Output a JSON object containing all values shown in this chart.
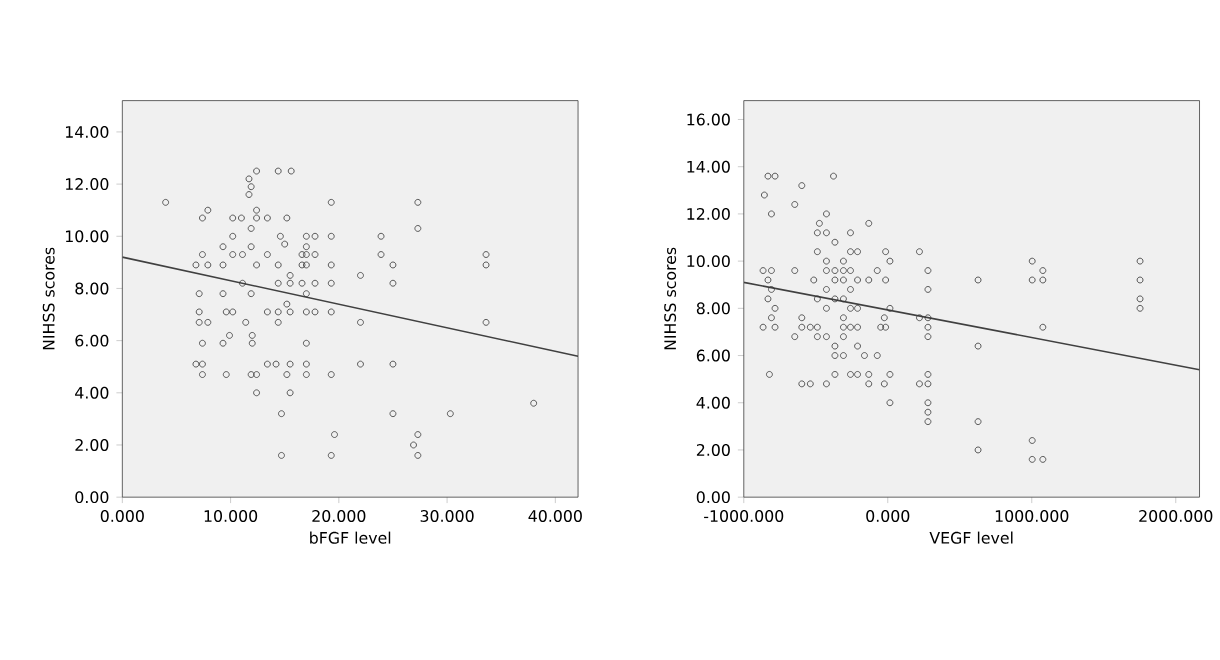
{
  "chart_data": [
    {
      "type": "scatter",
      "xlabel": "bFGF level",
      "ylabel": "NIHSS scores",
      "xlim": [
        0,
        42.1
      ],
      "ylim": [
        0,
        15.2
      ],
      "xticks": [
        {
          "value": 0,
          "label": "0.000"
        },
        {
          "value": 10,
          "label": "10.000"
        },
        {
          "value": 20,
          "label": "20.000"
        },
        {
          "value": 30,
          "label": "30.000"
        },
        {
          "value": 40,
          "label": "40.000"
        }
      ],
      "yticks": [
        {
          "value": 0,
          "label": "0.00"
        },
        {
          "value": 2,
          "label": "2.00"
        },
        {
          "value": 4,
          "label": "4.00"
        },
        {
          "value": 6,
          "label": "6.00"
        },
        {
          "value": 8,
          "label": "8.00"
        },
        {
          "value": 10,
          "label": "10.00"
        },
        {
          "value": 12,
          "label": "12.00"
        },
        {
          "value": 14,
          "label": "14.00"
        }
      ],
      "grid": false,
      "series": [
        {
          "color": "#333333",
          "marker": "circle",
          "x": [
            4.0,
            7.9,
            7.4,
            6.8,
            7.4,
            7.9,
            7.1,
            7.1,
            7.1,
            7.9,
            7.4,
            6.8,
            7.4,
            7.4,
            9.3,
            9.3,
            9.3,
            9.6,
            9.3,
            9.6,
            9.9,
            10.2,
            10.2,
            10.2,
            10.2,
            11.0,
            11.1,
            11.1,
            11.4,
            11.7,
            11.7,
            11.9,
            11.9,
            11.9,
            11.9,
            12.0,
            11.9,
            12.0,
            12.4,
            12.4,
            12.4,
            12.4,
            12.4,
            12.4,
            13.4,
            13.4,
            13.4,
            13.4,
            14.4,
            14.6,
            14.4,
            14.4,
            14.4,
            14.4,
            14.2,
            14.7,
            14.7,
            15.0,
            15.2,
            15.2,
            15.2,
            15.6,
            15.5,
            15.5,
            15.5,
            15.5,
            15.5,
            16.6,
            16.6,
            16.6,
            17.0,
            17.0,
            17.0,
            17.0,
            17.0,
            17.0,
            17.0,
            17.0,
            17.0,
            17.8,
            17.8,
            17.8,
            17.8,
            19.3,
            19.3,
            19.3,
            19.3,
            19.3,
            19.3,
            19.3,
            19.6,
            22.0,
            22.0,
            22.0,
            23.9,
            23.9,
            25.0,
            25.0,
            25.0,
            25.0,
            26.9,
            27.3,
            27.3,
            27.3,
            27.3,
            30.3,
            33.6,
            33.6,
            33.6,
            38.0
          ],
          "values": [
            11.3,
            11.0,
            10.7,
            8.9,
            9.3,
            8.9,
            7.8,
            7.1,
            6.7,
            6.7,
            5.9,
            5.1,
            5.1,
            4.7,
            9.6,
            8.9,
            7.8,
            7.1,
            5.9,
            4.7,
            6.2,
            10.7,
            10.0,
            9.3,
            7.1,
            10.7,
            9.3,
            8.2,
            6.7,
            12.2,
            11.6,
            11.9,
            10.3,
            9.6,
            7.8,
            6.2,
            4.7,
            5.9,
            12.5,
            11.0,
            10.7,
            8.9,
            4.0,
            4.7,
            10.7,
            9.3,
            7.1,
            5.1,
            12.5,
            10.0,
            8.9,
            8.2,
            7.1,
            6.7,
            5.1,
            3.2,
            1.6,
            9.7,
            7.4,
            4.7,
            10.7,
            12.5,
            8.5,
            8.2,
            7.1,
            5.1,
            4.0,
            9.3,
            8.9,
            8.2,
            10.0,
            9.6,
            9.3,
            8.9,
            7.8,
            7.1,
            5.9,
            5.1,
            4.7,
            10.0,
            9.3,
            8.2,
            7.1,
            11.3,
            10.0,
            8.9,
            8.2,
            7.1,
            4.7,
            1.6,
            2.4,
            8.5,
            6.7,
            5.1,
            10.0,
            9.3,
            8.9,
            8.2,
            5.1,
            3.2,
            2.0,
            11.3,
            10.3,
            2.4,
            1.6,
            3.2,
            9.3,
            8.9,
            6.7,
            3.6
          ]
        },
        {
          "type": "line",
          "color": "#404040",
          "marker": "none",
          "x": [
            0,
            42.1
          ],
          "values": [
            9.2,
            5.4
          ]
        }
      ]
    },
    {
      "type": "scatter",
      "xlabel": "VEGF level",
      "ylabel": "NIHSS scores",
      "xlim": [
        -1000,
        2165
      ],
      "ylim": [
        0,
        16.8
      ],
      "xticks": [
        {
          "value": -1000,
          "label": "-1000.000"
        },
        {
          "value": 0,
          "label": "0.000"
        },
        {
          "value": 1000,
          "label": "1000.000"
        },
        {
          "value": 2000,
          "label": "2000.000"
        }
      ],
      "yticks": [
        {
          "value": 0,
          "label": "0.00"
        },
        {
          "value": 2,
          "label": "2.00"
        },
        {
          "value": 4,
          "label": "4.00"
        },
        {
          "value": 6,
          "label": "6.00"
        },
        {
          "value": 8,
          "label": "8.00"
        },
        {
          "value": 10,
          "label": "10.00"
        },
        {
          "value": 12,
          "label": "12.00"
        },
        {
          "value": 14,
          "label": "14.00"
        },
        {
          "value": 16,
          "label": "16.00"
        }
      ],
      "grid": false,
      "series": [
        {
          "color": "#333333",
          "marker": "circle",
          "x": [
            -857,
            -832,
            -783,
            -808,
            -866,
            -808,
            -832,
            -832,
            -808,
            -783,
            -808,
            -866,
            -783,
            -822,
            -646,
            -597,
            -646,
            -646,
            -597,
            -597,
            -597,
            -538,
            -538,
            -514,
            -489,
            -489,
            -475,
            -489,
            -489,
            -489,
            -426,
            -426,
            -426,
            -426,
            -426,
            -426,
            -426,
            -426,
            -377,
            -367,
            -367,
            -367,
            -367,
            -367,
            -367,
            -367,
            -308,
            -308,
            -308,
            -308,
            -308,
            -308,
            -308,
            -308,
            -259,
            -259,
            -259,
            -259,
            -259,
            -259,
            -259,
            -210,
            -210,
            -210,
            -210,
            -210,
            -210,
            -162,
            -132,
            -132,
            -132,
            -132,
            -73,
            -73,
            -49,
            -24,
            -24,
            -15,
            -15,
            -15,
            15,
            15,
            15,
            15,
            220,
            220,
            220,
            279,
            279,
            279,
            279,
            279,
            279,
            279,
            279,
            279,
            279,
            627,
            627,
            627,
            627,
            1003,
            1003,
            1003,
            1003,
            1077,
            1077,
            1077,
            1077,
            1752,
            1752,
            1752,
            1752
          ],
          "values": [
            12.8,
            13.6,
            13.6,
            12.0,
            9.6,
            9.6,
            9.2,
            8.4,
            8.8,
            8.0,
            7.6,
            7.2,
            7.2,
            5.2,
            12.4,
            13.2,
            9.6,
            6.8,
            7.6,
            7.2,
            4.8,
            4.8,
            7.2,
            9.2,
            10.4,
            11.2,
            11.6,
            8.4,
            7.2,
            6.8,
            12.0,
            11.2,
            10.0,
            9.6,
            8.8,
            8.0,
            6.8,
            4.8,
            13.6,
            10.8,
            9.6,
            9.2,
            8.4,
            6.4,
            6.0,
            5.2,
            10.0,
            9.6,
            9.2,
            8.4,
            7.6,
            7.2,
            6.8,
            6.0,
            11.2,
            10.4,
            9.6,
            8.8,
            8.0,
            7.2,
            5.2,
            10.4,
            9.2,
            8.0,
            7.2,
            6.4,
            5.2,
            6.0,
            11.6,
            9.2,
            5.2,
            4.8,
            9.6,
            6.0,
            7.2,
            7.6,
            4.8,
            10.4,
            9.2,
            7.2,
            10.0,
            8.0,
            5.2,
            4.0,
            10.4,
            7.6,
            4.8,
            9.6,
            8.8,
            7.6,
            7.2,
            6.8,
            5.2,
            4.8,
            4.0,
            3.6,
            3.2,
            9.2,
            6.4,
            3.2,
            2.0,
            10.0,
            9.2,
            2.4,
            1.6,
            1.6,
            9.6,
            9.2,
            7.2,
            10.0,
            9.2,
            8.4,
            8.0
          ]
        },
        {
          "type": "line",
          "color": "#404040",
          "marker": "none",
          "x": [
            -1000,
            2165
          ],
          "values": [
            9.1,
            5.4
          ]
        }
      ]
    }
  ]
}
